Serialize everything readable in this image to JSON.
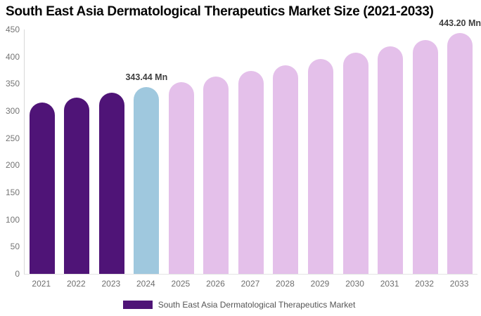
{
  "chart_data": {
    "type": "bar",
    "title": "South East Asia Dermatological Therapeutics Market Size (2021-2033)",
    "categories": [
      "2021",
      "2022",
      "2023",
      "2024",
      "2025",
      "2026",
      "2027",
      "2028",
      "2029",
      "2030",
      "2031",
      "2032",
      "2033"
    ],
    "values": [
      315.5,
      324.5,
      333.9,
      343.44,
      353.3,
      363.5,
      373.9,
      384.7,
      395.7,
      407.1,
      418.8,
      430.8,
      443.2
    ],
    "value_unit": "Mn",
    "segments": [
      "historical",
      "historical",
      "historical",
      "current",
      "forecast",
      "forecast",
      "forecast",
      "forecast",
      "forecast",
      "forecast",
      "forecast",
      "forecast",
      "forecast"
    ],
    "colors": {
      "historical": "#4F1477",
      "current": "#9FC8DE",
      "forecast": "#E4C0EA"
    },
    "annotations": [
      {
        "category": "2024",
        "label": "343.44 Mn"
      },
      {
        "category": "2033",
        "label": "443.20 Mn"
      }
    ],
    "xlabel": "",
    "ylabel": "",
    "ylim": [
      0,
      450
    ],
    "yticks": [
      0,
      50,
      100,
      150,
      200,
      250,
      300,
      350,
      400,
      450
    ],
    "grid": false,
    "legend_position": "bottom",
    "legend": [
      {
        "label": "South East Asia Dermatological Therapeutics Market",
        "color": "#4F1477"
      }
    ],
    "text_colors": {
      "title": "#050505",
      "axis_labels": "#757575",
      "annotation": "#3F3F3F",
      "legend": "#555555"
    }
  }
}
